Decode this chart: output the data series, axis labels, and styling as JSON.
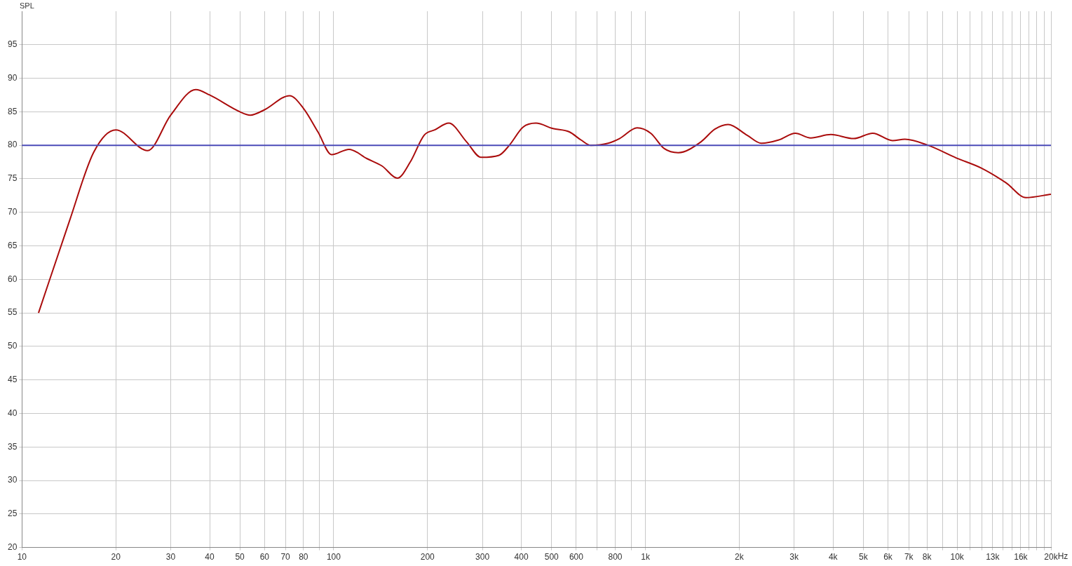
{
  "chart_data": {
    "type": "line",
    "ylabel": "SPL",
    "log": "x",
    "grid": true,
    "legend": false,
    "marker": "none",
    "line_style": "solid",
    "xlim": [
      10,
      20000
    ],
    "ylim": [
      20,
      100
    ],
    "xticks": [
      10,
      20,
      30,
      40,
      50,
      60,
      70,
      80,
      {
        "value": 90,
        "label": null
      },
      100,
      200,
      300,
      400,
      500,
      600,
      {
        "value": 700,
        "label": null
      },
      800,
      {
        "value": 900,
        "label": null
      },
      {
        "value": 1000,
        "label": "1k"
      },
      {
        "value": 2000,
        "label": "2k"
      },
      {
        "value": 3000,
        "label": "3k"
      },
      {
        "value": 4000,
        "label": "4k"
      },
      {
        "value": 5000,
        "label": "5k"
      },
      {
        "value": 6000,
        "label": "6k"
      },
      {
        "value": 7000,
        "label": "7k"
      },
      {
        "value": 8000,
        "label": "8k"
      },
      {
        "value": 9000,
        "label": null
      },
      {
        "value": 10000,
        "label": "10k"
      },
      {
        "value": 11000,
        "label": null
      },
      {
        "value": 12000,
        "label": null
      },
      {
        "value": 13000,
        "label": "13k"
      },
      {
        "value": 14000,
        "label": null
      },
      {
        "value": 15000,
        "label": null
      },
      {
        "value": 16000,
        "label": "16k"
      },
      {
        "value": 17000,
        "label": null
      },
      {
        "value": 18000,
        "label": null
      },
      {
        "value": 19000,
        "label": null
      },
      {
        "value": 20000,
        "label": "20k"
      }
    ],
    "xlabel": "Hz",
    "yticks": [
      20,
      25,
      30,
      35,
      40,
      45,
      50,
      55,
      60,
      65,
      70,
      75,
      80,
      85,
      90,
      95
    ],
    "ref_lines": [
      {
        "axis": "y",
        "value": 80,
        "color": "#4a4ab8"
      }
    ],
    "series": [
      {
        "color": "#aa0c0c",
        "x": [
          11.3,
          14.2,
          17,
          20,
          25.3,
          30,
          36.1,
          40,
          50,
          54,
          60,
          72.2,
          80,
          89,
          98.5,
          112,
          128,
          143,
          160,
          176,
          195,
          211,
          234,
          267,
          297,
          339,
          366,
          405,
          445,
          505,
          570,
          621,
          667,
          759,
          826,
          941,
          1040,
          1150,
          1275,
          1506,
          1670,
          1841,
          2120,
          2355,
          2680,
          3026,
          3390,
          3935,
          4656,
          5362,
          6205,
          6800,
          8070,
          9950,
          11950,
          14350,
          16630,
          20000
        ],
        "values": [
          55,
          68.7,
          79,
          82.3,
          79.2,
          84.5,
          88.3,
          87.5,
          85,
          84.5,
          85.3,
          87.4,
          85.5,
          82,
          78.6,
          79.4,
          78,
          76.9,
          75.1,
          77.5,
          81.5,
          82.3,
          83.3,
          80.5,
          78.2,
          78.5,
          80,
          82.7,
          83.3,
          82.5,
          82,
          80.8,
          80,
          80.3,
          81,
          82.6,
          81.8,
          79.5,
          78.9,
          80.5,
          82.4,
          83.1,
          81.5,
          80.3,
          80.8,
          81.8,
          81.1,
          81.6,
          81,
          81.8,
          80.7,
          80.9,
          80,
          78.1,
          76.6,
          74.4,
          72.2,
          72.7
        ]
      }
    ]
  }
}
